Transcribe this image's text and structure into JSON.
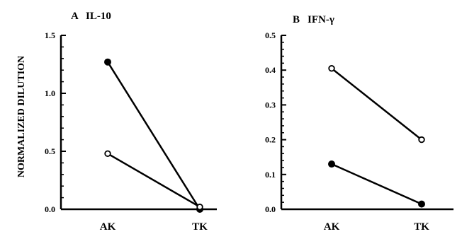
{
  "chart_data": [
    {
      "type": "line",
      "panel_letter": "A",
      "title": "IL-10",
      "ylabel": "NORMALIZED DILUTION",
      "categories": [
        "AK",
        "TK"
      ],
      "ylim": [
        0,
        1.5
      ],
      "yticks": [
        "0.0",
        "0.5",
        "1.0",
        "1.5"
      ],
      "series": [
        {
          "marker": "filled",
          "values": [
            1.27,
            0.0
          ]
        },
        {
          "marker": "open",
          "values": [
            0.48,
            0.02
          ]
        }
      ]
    },
    {
      "type": "line",
      "panel_letter": "B",
      "title": "IFN-γ",
      "ylabel": "",
      "categories": [
        "AK",
        "TK"
      ],
      "ylim": [
        0,
        0.5
      ],
      "yticks": [
        "0.0",
        "0.1",
        "0.2",
        "0.3",
        "0.4",
        "0.5"
      ],
      "series": [
        {
          "marker": "open",
          "values": [
            0.405,
            0.2
          ]
        },
        {
          "marker": "filled",
          "values": [
            0.13,
            0.015
          ]
        }
      ]
    }
  ]
}
